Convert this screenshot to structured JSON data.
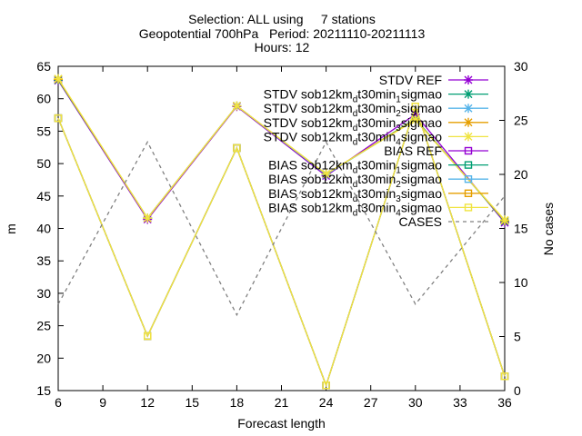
{
  "chart_data": {
    "type": "line",
    "title_lines": [
      "Selection: ALL using     7 stations",
      "Geopotential 700hPa   Period: 20211110-20211113",
      "Hours: 12"
    ],
    "xlabel": "Forecast length",
    "ylabel": "m",
    "y2label": "No cases",
    "xlim": [
      6,
      36
    ],
    "ylim": [
      15,
      65
    ],
    "y2lim": [
      0,
      30
    ],
    "x_ticks": [
      6,
      9,
      12,
      15,
      18,
      21,
      24,
      27,
      30,
      33,
      36
    ],
    "y_ticks": [
      15,
      20,
      25,
      30,
      35,
      40,
      45,
      50,
      55,
      60,
      65
    ],
    "y2_ticks": [
      0,
      5,
      10,
      15,
      20,
      25,
      30
    ],
    "grid": false,
    "legend_position": "top-right",
    "x": [
      6,
      12,
      18,
      24,
      30,
      36
    ],
    "series": [
      {
        "name": "STDV REF",
        "color": "#9400d3",
        "marker": "x",
        "axis": "y1",
        "values": [
          62.8,
          41.4,
          58.8,
          48.1,
          57.6,
          40.9
        ]
      },
      {
        "name": "STDV sob12km_d_t30min_1_sigmao",
        "color": "#009e73",
        "marker": "x",
        "axis": "y1",
        "values": [
          62.9,
          41.6,
          58.9,
          48.3,
          56.9,
          41.1
        ]
      },
      {
        "name": "STDV sob12km_d_t30min_2_sigmao",
        "color": "#56b4e9",
        "marker": "x",
        "axis": "y1",
        "values": [
          63.0,
          41.6,
          58.9,
          48.3,
          56.8,
          41.2
        ]
      },
      {
        "name": "STDV sob12km_d_t30min_3_sigmao",
        "color": "#e69f00",
        "marker": "x",
        "axis": "y1",
        "values": [
          63.0,
          41.6,
          58.9,
          48.4,
          56.8,
          41.2
        ]
      },
      {
        "name": "STDV sob12km_d_t30min_4_sigmao",
        "color": "#f0e442",
        "marker": "x",
        "axis": "y1",
        "values": [
          63.1,
          41.6,
          58.9,
          48.4,
          56.7,
          41.3
        ]
      },
      {
        "name": "BIAS REF",
        "color": "#9400d3",
        "marker": "square",
        "axis": "y1",
        "values": [
          57.0,
          23.4,
          52.4,
          15.8,
          58.8,
          17.2
        ]
      },
      {
        "name": "BIAS sob12km_d_t30min_1_sigmao",
        "color": "#009e73",
        "marker": "square",
        "axis": "y1",
        "values": [
          57.0,
          23.4,
          52.4,
          15.8,
          58.8,
          17.2
        ]
      },
      {
        "name": "BIAS sob12km_d_t30min_2_sigmao",
        "color": "#56b4e9",
        "marker": "square",
        "axis": "y1",
        "values": [
          57.0,
          23.4,
          52.4,
          15.8,
          58.8,
          17.2
        ]
      },
      {
        "name": "BIAS sob12km_d_t30min_3_sigmao",
        "color": "#e69f00",
        "marker": "square",
        "axis": "y1",
        "values": [
          57.0,
          23.4,
          52.4,
          15.8,
          58.8,
          17.2
        ]
      },
      {
        "name": "BIAS sob12km_d_t30min_4_sigmao",
        "color": "#f0e442",
        "marker": "square",
        "axis": "y1",
        "values": [
          57.0,
          23.4,
          52.4,
          15.8,
          58.8,
          17.2
        ]
      },
      {
        "name": "CASES",
        "color": "#808080",
        "marker": "none",
        "dashed": true,
        "axis": "y2",
        "values": [
          8,
          23,
          7,
          23,
          8,
          18
        ]
      }
    ]
  }
}
